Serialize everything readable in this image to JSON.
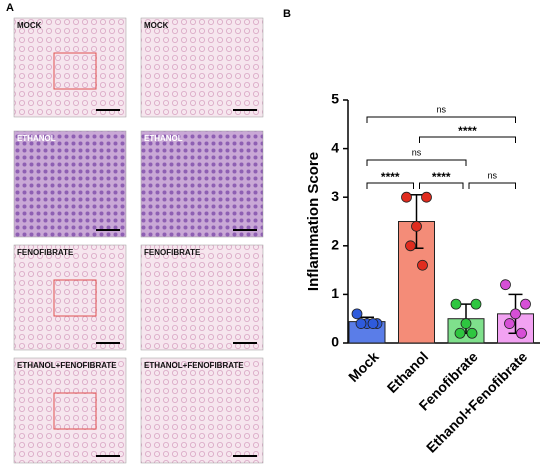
{
  "panel_a": {
    "label": "A",
    "images": [
      [
        "MOCK",
        "MOCK"
      ],
      [
        "ETHANOL",
        "ETHANOL"
      ],
      [
        "FENOFIBRATE",
        "FENOFIBRATE"
      ],
      [
        "ETHANOL+FENOFIBRATE",
        "ETHANOL+FENOFIBRATE"
      ]
    ]
  },
  "panel_b_label": "B",
  "chart_data": {
    "type": "bar",
    "y_label": "Inflammation Score",
    "categories": [
      "Mock",
      "Ethanol",
      "Fenofibrate",
      "Ethanol+Fenofibrate"
    ],
    "values": [
      0.44,
      2.5,
      0.5,
      0.6
    ],
    "errors": [
      0.09,
      0.55,
      0.3,
      0.4
    ],
    "points": [
      [
        0.6,
        0.4,
        0.4,
        0.4,
        0.4
      ],
      [
        3.0,
        3.0,
        2.4,
        2.0,
        1.6
      ],
      [
        0.8,
        0.8,
        0.4,
        0.2,
        0.2
      ],
      [
        1.2,
        0.8,
        0.6,
        0.4,
        0.2
      ]
    ],
    "colors": [
      "#5a7de8",
      "#f48c78",
      "#7fe08c",
      "#f2a2f2"
    ],
    "point_colors": [
      "#2f5bdc",
      "#e02b1e",
      "#2ec640",
      "#d64fd6"
    ],
    "annotations": [
      "ns",
      "****",
      "ns",
      "****",
      "****",
      "ns"
    ],
    "ylim": [
      0,
      5
    ],
    "yticks": [
      0,
      1,
      2,
      3,
      4,
      5
    ]
  }
}
